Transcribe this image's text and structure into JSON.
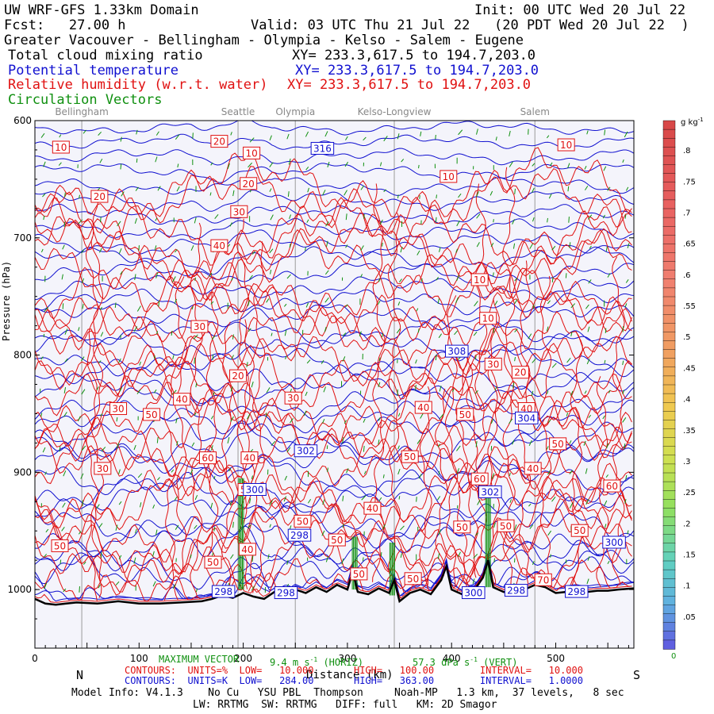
{
  "header": {
    "line1_left": "UW WRF-GFS 1.33km Domain",
    "line1_right": "Init: 00 UTC Wed 20 Jul 22",
    "fcst": "Fcst:   27.00 h",
    "valid": "Valid: 03 UTC Thu 21 Jul 22   (20 PDT Wed 20 Jul 22  )",
    "region": "Greater Vacouver - Bellingham - Olympia - Kelso - Salem - Eugene",
    "field1": "Total cloud mixing ratio",
    "field1_xy": "XY= 233.3,617.5 to 194.7,203.0",
    "field2": "Potential temperature",
    "field2_xy": "XY= 233.3,617.5 to 194.7,203.0",
    "field3": "Relative humidity (w.r.t. water)",
    "field3_xy": "XY= 233.3,617.5 to 194.7,203.0",
    "field4": "Circulation Vectors"
  },
  "colors": {
    "theta": "#1010d0",
    "rh": "#e01010",
    "vectors": "#109010",
    "terrain": "#000000",
    "background": "#f4f4fb"
  },
  "chart_data": {
    "type": "line",
    "xlabel": "Distance (km)",
    "ylabel": "Pressure (hPa)",
    "xlim": [
      0,
      575
    ],
    "ylim": [
      1050,
      600
    ],
    "x_ticks": [
      0,
      100,
      200,
      300,
      400,
      500
    ],
    "y_ticks": [
      600,
      700,
      800,
      900,
      1000
    ],
    "left_end": "N",
    "right_end": "S",
    "cities": [
      {
        "name": "Bellingham",
        "x": 45
      },
      {
        "name": "Seattle",
        "x": 195
      },
      {
        "name": "Olympia",
        "x": 250
      },
      {
        "name": "Kelso-Longview",
        "x": 345
      },
      {
        "name": "Salem",
        "x": 480
      }
    ],
    "theta_labels": [
      {
        "text": "316",
        "x": 276,
        "p": 624
      },
      {
        "text": "308",
        "x": 405,
        "p": 797
      },
      {
        "text": "302",
        "x": 260,
        "p": 882
      },
      {
        "text": "300",
        "x": 211,
        "p": 915
      },
      {
        "text": "302",
        "x": 437,
        "p": 917
      },
      {
        "text": "298",
        "x": 254,
        "p": 954
      },
      {
        "text": "300",
        "x": 556,
        "p": 960
      },
      {
        "text": "298",
        "x": 181,
        "p": 1002
      },
      {
        "text": "298",
        "x": 241,
        "p": 1003
      },
      {
        "text": "300",
        "x": 421,
        "p": 1003
      },
      {
        "text": "298",
        "x": 462,
        "p": 1001
      },
      {
        "text": "298",
        "x": 520,
        "p": 1002
      },
      {
        "text": "304",
        "x": 472,
        "p": 854
      }
    ],
    "rh_labels": [
      {
        "text": "10",
        "x": 25,
        "p": 623
      },
      {
        "text": "20",
        "x": 62,
        "p": 665
      },
      {
        "text": "20",
        "x": 177,
        "p": 618
      },
      {
        "text": "10",
        "x": 208,
        "p": 628
      },
      {
        "text": "20",
        "x": 205,
        "p": 654
      },
      {
        "text": "30",
        "x": 196,
        "p": 678
      },
      {
        "text": "40",
        "x": 177,
        "p": 707
      },
      {
        "text": "30",
        "x": 158,
        "p": 776
      },
      {
        "text": "10",
        "x": 510,
        "p": 621
      },
      {
        "text": "10",
        "x": 397,
        "p": 648
      },
      {
        "text": "10",
        "x": 427,
        "p": 736
      },
      {
        "text": "10",
        "x": 435,
        "p": 769
      },
      {
        "text": "30",
        "x": 440,
        "p": 808
      },
      {
        "text": "20",
        "x": 466,
        "p": 815
      },
      {
        "text": "20",
        "x": 195,
        "p": 818
      },
      {
        "text": "30",
        "x": 248,
        "p": 837
      },
      {
        "text": "30",
        "x": 80,
        "p": 846
      },
      {
        "text": "50",
        "x": 112,
        "p": 851
      },
      {
        "text": "40",
        "x": 141,
        "p": 838
      },
      {
        "text": "40",
        "x": 373,
        "p": 845
      },
      {
        "text": "50",
        "x": 413,
        "p": 851
      },
      {
        "text": "40",
        "x": 472,
        "p": 846
      },
      {
        "text": "50",
        "x": 502,
        "p": 876
      },
      {
        "text": "60",
        "x": 166,
        "p": 888
      },
      {
        "text": "40",
        "x": 206,
        "p": 888
      },
      {
        "text": "30",
        "x": 65,
        "p": 897
      },
      {
        "text": "50",
        "x": 360,
        "p": 887
      },
      {
        "text": "40",
        "x": 478,
        "p": 897
      },
      {
        "text": "60",
        "x": 427,
        "p": 906
      },
      {
        "text": "60",
        "x": 554,
        "p": 912
      },
      {
        "text": "50",
        "x": 203,
        "p": 915
      },
      {
        "text": "40",
        "x": 324,
        "p": 931
      },
      {
        "text": "50",
        "x": 257,
        "p": 942
      },
      {
        "text": "50",
        "x": 410,
        "p": 947
      },
      {
        "text": "50",
        "x": 452,
        "p": 946
      },
      {
        "text": "50",
        "x": 523,
        "p": 950
      },
      {
        "text": "50",
        "x": 24,
        "p": 963
      },
      {
        "text": "40",
        "x": 204,
        "p": 966
      },
      {
        "text": "50",
        "x": 290,
        "p": 958
      },
      {
        "text": "50",
        "x": 171,
        "p": 977
      },
      {
        "text": "50",
        "x": 311,
        "p": 987
      },
      {
        "text": "50",
        "x": 363,
        "p": 991
      },
      {
        "text": "70",
        "x": 488,
        "p": 992
      }
    ],
    "terrain_pressure": [
      [
        0,
        1008
      ],
      [
        10,
        1012
      ],
      [
        20,
        1013
      ],
      [
        30,
        1012
      ],
      [
        40,
        1011
      ],
      [
        60,
        1012
      ],
      [
        80,
        1010
      ],
      [
        100,
        1012
      ],
      [
        120,
        1012
      ],
      [
        140,
        1011
      ],
      [
        160,
        1010
      ],
      [
        170,
        1008
      ],
      [
        180,
        1005
      ],
      [
        190,
        1007
      ],
      [
        200,
        1003
      ],
      [
        210,
        1006
      ],
      [
        220,
        1008
      ],
      [
        230,
        1002
      ],
      [
        240,
        1006
      ],
      [
        250,
        1000
      ],
      [
        260,
        1003
      ],
      [
        270,
        998
      ],
      [
        280,
        1002
      ],
      [
        290,
        996
      ],
      [
        300,
        1000
      ],
      [
        305,
        985
      ],
      [
        310,
        1002
      ],
      [
        320,
        1004
      ],
      [
        330,
        999
      ],
      [
        340,
        1003
      ],
      [
        345,
        992
      ],
      [
        350,
        1010
      ],
      [
        360,
        1003
      ],
      [
        370,
        1000
      ],
      [
        380,
        1004
      ],
      [
        390,
        992
      ],
      [
        395,
        980
      ],
      [
        400,
        1000
      ],
      [
        410,
        1004
      ],
      [
        420,
        1003
      ],
      [
        430,
        990
      ],
      [
        435,
        975
      ],
      [
        440,
        998
      ],
      [
        450,
        1002
      ],
      [
        460,
        1003
      ],
      [
        470,
        1000
      ],
      [
        480,
        996
      ],
      [
        490,
        998
      ],
      [
        500,
        1003
      ],
      [
        510,
        1002
      ],
      [
        520,
        1001
      ],
      [
        530,
        1002
      ],
      [
        540,
        1001
      ],
      [
        550,
        1001
      ],
      [
        560,
        1000
      ],
      [
        575,
        999
      ]
    ]
  },
  "colorbar": {
    "title": "g kg",
    "title_exp": "-1",
    "labels": [
      ".8",
      ".75",
      ".7",
      ".65",
      ".6",
      ".55",
      ".5",
      ".45",
      ".4",
      ".35",
      ".3",
      ".25",
      ".2",
      ".15",
      ".1",
      ".05"
    ],
    "bottom_label": "0"
  },
  "footer": {
    "max_vector_label": "MAXIMUM VECTOR",
    "max_vector_horiz": "9.4 m s",
    "max_vector_horiz_exp": "-1",
    "max_vector_horiz_tag": "(HORIZ)",
    "max_vector_vert": "57.3 dPa s",
    "max_vector_vert_exp": "-1",
    "max_vector_vert_tag": "(VERT)",
    "rh_contours": "CONTOURS:  UNITS=%  LOW=   10.000       HIGH=   100.00        INTERVAL=   10.000",
    "theta_contours": "CONTOURS:  UNITS=K  LOW=   284.00       HIGH=   363.00        INTERVAL=   1.0000",
    "model_info": "Model Info: V4.1.3    No Cu   YSU PBL  Thompson     Noah-MP   1.3 km,  37 levels,   8 sec",
    "model_info2": "LW: RRTMG  SW: RRTMG   DIFF: full   KM: 2D Smagor"
  }
}
